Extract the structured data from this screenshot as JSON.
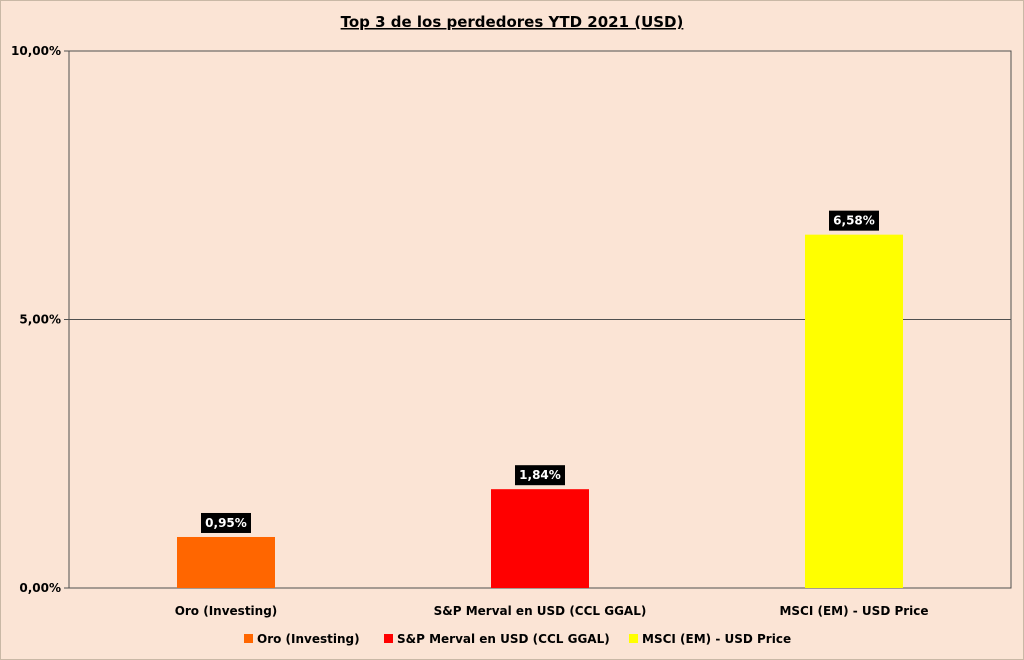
{
  "chart_data": {
    "type": "bar",
    "title": "Top 3 de los perdedores YTD 2021 (USD)",
    "categories": [
      "Oro (Investing)",
      "S&P Merval en USD (CCL GGAL)",
      "MSCI (EM) - USD Price"
    ],
    "values": [
      0.95,
      1.84,
      6.58
    ],
    "value_labels": [
      "0,95%",
      "1,84%",
      "6,58%"
    ],
    "colors": [
      "#ff6600",
      "#ff0000",
      "#ffff00"
    ],
    "ylim": [
      0,
      10
    ],
    "yticks": [
      0,
      5,
      10
    ],
    "ytick_labels": [
      "0,00%",
      "5,00%",
      "10,00%"
    ],
    "grid": true,
    "legend_position": "bottom",
    "legend": [
      {
        "name": "Oro (Investing)",
        "color": "#ff6600"
      },
      {
        "name": "S&P Merval en USD (CCL GGAL)",
        "color": "#ff0000"
      },
      {
        "name": "MSCI (EM) - USD Price",
        "color": "#ffff00"
      }
    ],
    "plot_background": "#fbe4d5",
    "label_background": "#000000"
  }
}
